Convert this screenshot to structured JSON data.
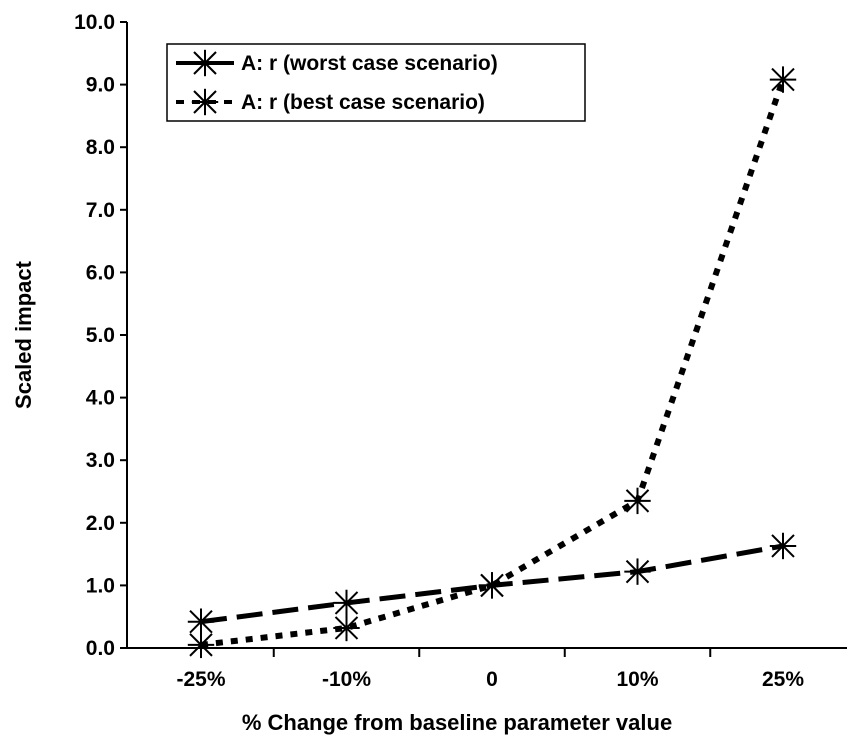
{
  "chart_data": {
    "type": "line",
    "categories": [
      "-25%",
      "-10%",
      "0",
      "10%",
      "25%"
    ],
    "series": [
      {
        "name": "A: r (worst case scenario)",
        "values": [
          0.42,
          0.72,
          1.0,
          1.22,
          1.63
        ],
        "style": "dashed"
      },
      {
        "name": "A: r (best case scenario)",
        "values": [
          0.05,
          0.32,
          1.0,
          2.35,
          9.08
        ],
        "style": "dotted"
      }
    ],
    "ylim": [
      0,
      10
    ],
    "yticks": [
      "0.0",
      "1.0",
      "2.0",
      "3.0",
      "4.0",
      "5.0",
      "6.0",
      "7.0",
      "8.0",
      "9.0",
      "10.0"
    ],
    "xlabel": "% Change from baseline parameter value",
    "ylabel": "Scaled impact",
    "grid": false,
    "legend_position": "top-left",
    "line_color": "#000000",
    "marker": "asterisk"
  }
}
